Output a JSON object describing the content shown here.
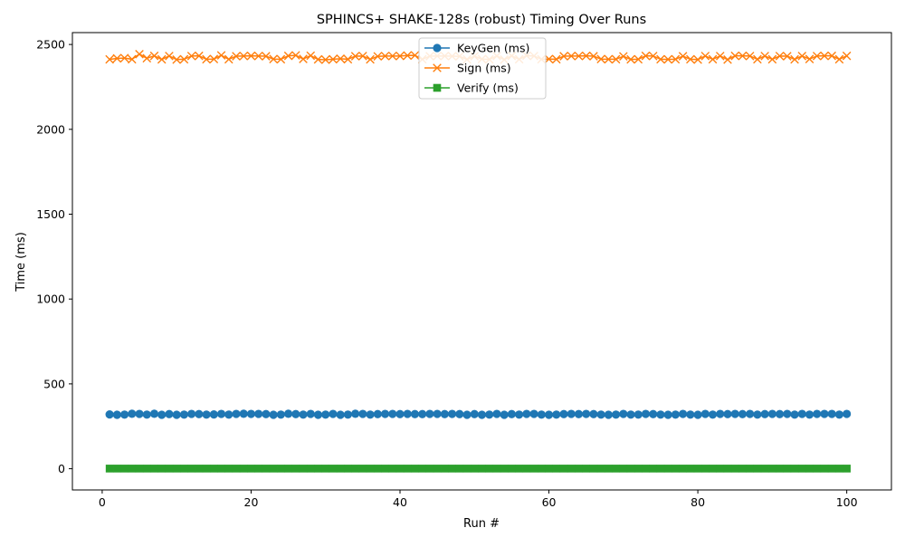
{
  "chart_data": {
    "type": "line",
    "title": "SPHINCS+ SHAKE-128s (robust) Timing Over Runs",
    "xlabel": "Run #",
    "ylabel": "Time (ms)",
    "xlim": [
      -4,
      106
    ],
    "ylim": [
      -125,
      2570
    ],
    "xticks": [
      0,
      20,
      40,
      60,
      80,
      100
    ],
    "yticks": [
      0,
      500,
      1000,
      1500,
      2000,
      2500
    ],
    "grid": false,
    "legend_position": "top-center",
    "x": [
      1,
      2,
      3,
      4,
      5,
      6,
      7,
      8,
      9,
      10,
      11,
      12,
      13,
      14,
      15,
      16,
      17,
      18,
      19,
      20,
      21,
      22,
      23,
      24,
      25,
      26,
      27,
      28,
      29,
      30,
      31,
      32,
      33,
      34,
      35,
      36,
      37,
      38,
      39,
      40,
      41,
      42,
      43,
      44,
      45,
      46,
      47,
      48,
      49,
      50,
      51,
      52,
      53,
      54,
      55,
      56,
      57,
      58,
      59,
      60,
      61,
      62,
      63,
      64,
      65,
      66,
      67,
      68,
      69,
      70,
      71,
      72,
      73,
      74,
      75,
      76,
      77,
      78,
      79,
      80,
      81,
      82,
      83,
      84,
      85,
      86,
      87,
      88,
      89,
      90,
      91,
      92,
      93,
      94,
      95,
      96,
      97,
      98,
      99,
      100
    ],
    "series": [
      {
        "name": "KeyGen (ms)",
        "color": "#1f77b4",
        "marker": "circle",
        "values": [
          320,
          318,
          319,
          324,
          323,
          319,
          324,
          318,
          322,
          318,
          319,
          323,
          322,
          319,
          320,
          323,
          319,
          323,
          324,
          323,
          323,
          322,
          318,
          319,
          324,
          322,
          319,
          323,
          318,
          319,
          323,
          318,
          319,
          324,
          323,
          319,
          322,
          323,
          323,
          322,
          323,
          322,
          322,
          323,
          323,
          322,
          323,
          322,
          318,
          322,
          318,
          319,
          323,
          318,
          322,
          319,
          323,
          323,
          319,
          318,
          319,
          322,
          323,
          322,
          323,
          322,
          319,
          318,
          319,
          323,
          319,
          319,
          323,
          322,
          319,
          318,
          319,
          323,
          319,
          318,
          323,
          319,
          323,
          322,
          323,
          322,
          323,
          319,
          322,
          323,
          322,
          323,
          319,
          323,
          319,
          323,
          323,
          323,
          319,
          323
        ]
      },
      {
        "name": "Sign (ms)",
        "color": "#ff7f0e",
        "marker": "x",
        "values": [
          2412,
          2418,
          2420,
          2413,
          2443,
          2419,
          2433,
          2412,
          2432,
          2411,
          2413,
          2432,
          2433,
          2413,
          2414,
          2436,
          2413,
          2431,
          2432,
          2433,
          2432,
          2431,
          2414,
          2413,
          2433,
          2436,
          2415,
          2434,
          2412,
          2410,
          2413,
          2416,
          2413,
          2431,
          2432,
          2412,
          2430,
          2432,
          2432,
          2432,
          2435,
          2436,
          2413,
          2431,
          2432,
          2432,
          2431,
          2430,
          2412,
          2431,
          2414,
          2412,
          2432,
          2411,
          2433,
          2413,
          2434,
          2432,
          2413,
          2414,
          2413,
          2431,
          2432,
          2432,
          2433,
          2431,
          2414,
          2413,
          2413,
          2430,
          2412,
          2413,
          2433,
          2432,
          2413,
          2412,
          2413,
          2431,
          2413,
          2411,
          2432,
          2413,
          2432,
          2411,
          2433,
          2433,
          2432,
          2413,
          2432,
          2413,
          2432,
          2431,
          2412,
          2432,
          2414,
          2432,
          2433,
          2433,
          2413,
          2433
        ]
      },
      {
        "name": "Verify (ms)",
        "color": "#2ca02c",
        "marker": "square",
        "values": [
          1,
          1,
          1,
          1,
          1,
          1,
          1,
          1,
          1,
          1,
          1,
          1,
          1,
          1,
          1,
          1,
          1,
          1,
          1,
          1,
          1,
          1,
          1,
          1,
          1,
          1,
          1,
          1,
          1,
          1,
          1,
          1,
          1,
          1,
          1,
          1,
          1,
          1,
          1,
          1,
          1,
          1,
          1,
          1,
          1,
          1,
          1,
          1,
          1,
          1,
          1,
          1,
          1,
          1,
          1,
          1,
          1,
          1,
          1,
          1,
          1,
          1,
          1,
          1,
          1,
          1,
          1,
          1,
          1,
          1,
          1,
          1,
          1,
          1,
          1,
          1,
          1,
          1,
          1,
          1,
          1,
          1,
          1,
          1,
          1,
          1,
          1,
          1,
          1,
          1,
          1,
          1,
          1,
          1,
          1,
          1,
          1,
          1,
          1,
          1
        ]
      }
    ]
  }
}
